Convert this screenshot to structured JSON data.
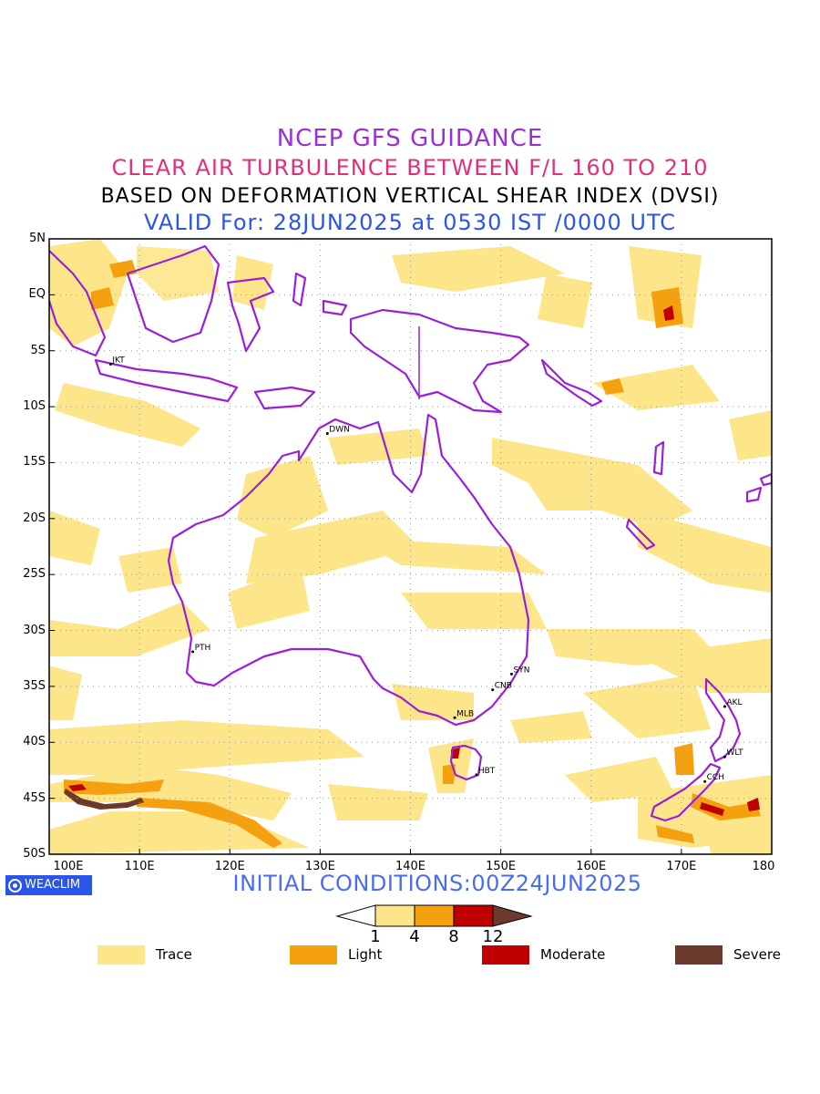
{
  "header": {
    "line1": "NCEP GFS GUIDANCE",
    "line2": "CLEAR AIR TURBULENCE BETWEEN F/L 160 TO 210",
    "line3": "BASED ON DEFORMATION VERTICAL SHEAR INDEX (DVSI)",
    "line4": "VALID For: 28JUN2025 at 0530 IST /0000 UTC"
  },
  "map": {
    "lat_labels": [
      "5N",
      "EQ",
      "5S",
      "10S",
      "15S",
      "20S",
      "25S",
      "30S",
      "35S",
      "40S",
      "45S",
      "50S"
    ],
    "lon_labels": [
      "100E",
      "110E",
      "120E",
      "130E",
      "140E",
      "150E",
      "160E",
      "170E",
      "180"
    ],
    "stations": [
      {
        "code": "JKT",
        "lon": 106.8,
        "lat": -6.2
      },
      {
        "code": "DWN",
        "lon": 130.8,
        "lat": -12.4
      },
      {
        "code": "PTH",
        "lon": 115.9,
        "lat": -31.9
      },
      {
        "code": "MLB",
        "lon": 144.9,
        "lat": -37.8
      },
      {
        "code": "SYN",
        "lon": 151.2,
        "lat": -33.9
      },
      {
        "code": "CNB",
        "lon": 149.1,
        "lat": -35.3
      },
      {
        "code": "HBT",
        "lon": 147.3,
        "lat": -42.9
      },
      {
        "code": "AKL",
        "lon": 174.8,
        "lat": -36.8
      },
      {
        "code": "WLT",
        "lon": 174.8,
        "lat": -41.3
      },
      {
        "code": "CCH",
        "lon": 172.6,
        "lat": -43.5
      }
    ],
    "colors": {
      "coast": "#9b1fd6",
      "trace": "#fde68a",
      "light": "#f5a00f",
      "moderate": "#c00000",
      "severe": "#6b3a2c"
    }
  },
  "footer": {
    "logo_text": "WEACLIM",
    "initial_conditions": "INITIAL CONDITIONS:00Z24JUN2025"
  },
  "colorbar": {
    "thresholds": [
      "1",
      "4",
      "8",
      "12"
    ]
  },
  "legend": [
    {
      "label": "Trace",
      "color": "#fde68a"
    },
    {
      "label": "Light",
      "color": "#f5a00f"
    },
    {
      "label": "Moderate",
      "color": "#c00000"
    },
    {
      "label": "Severe",
      "color": "#6b3a2c"
    }
  ]
}
